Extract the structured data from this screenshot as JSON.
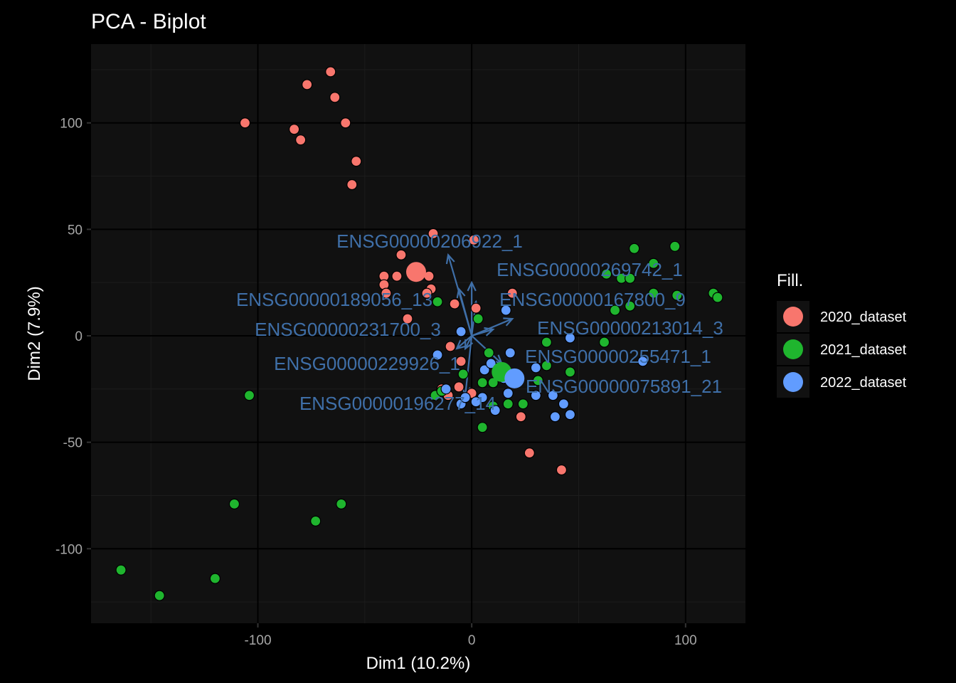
{
  "chart_data": {
    "type": "scatter",
    "title": "PCA - Biplot",
    "xlabel": "Dim1 (10.2%)",
    "ylabel": "Dim2 (7.9%)",
    "xlim": [
      -178,
      128
    ],
    "ylim": [
      -135,
      137
    ],
    "x_ticks": [
      -100,
      0,
      100
    ],
    "y_ticks": [
      100,
      50,
      0,
      -50,
      -100
    ],
    "x_tick_labels": [
      "-100",
      "0",
      "100"
    ],
    "y_tick_labels": [
      "100",
      "50",
      "0",
      "-50",
      "-100"
    ],
    "grid": true,
    "legend": {
      "title": "Fill.",
      "position": "right"
    },
    "series": [
      {
        "name": "2020_dataset",
        "color": "#f8766d",
        "centroid": [
          -26,
          30
        ],
        "points": [
          [
            -66,
            124
          ],
          [
            -77,
            118
          ],
          [
            -64,
            112
          ],
          [
            -106,
            100
          ],
          [
            -59,
            100
          ],
          [
            -83,
            97
          ],
          [
            -80,
            92
          ],
          [
            -54,
            82
          ],
          [
            -56,
            71
          ],
          [
            -18,
            48
          ],
          [
            1,
            45
          ],
          [
            -33,
            38
          ],
          [
            -35,
            28
          ],
          [
            -41,
            28
          ],
          [
            -20,
            28
          ],
          [
            -41,
            24
          ],
          [
            -19,
            22
          ],
          [
            -21,
            20
          ],
          [
            -40,
            20
          ],
          [
            -8,
            15
          ],
          [
            -30,
            8
          ],
          [
            2,
            13
          ],
          [
            19,
            20
          ],
          [
            -10,
            -5
          ],
          [
            -5,
            -12
          ],
          [
            -14,
            -25
          ],
          [
            -6,
            -24
          ],
          [
            -11,
            -28
          ],
          [
            0,
            -27
          ],
          [
            23,
            -38
          ],
          [
            27,
            -55
          ],
          [
            42,
            -63
          ]
        ]
      },
      {
        "name": "2021_dataset",
        "color": "#1fb52e",
        "centroid": [
          14,
          -17
        ],
        "points": [
          [
            76,
            41
          ],
          [
            95,
            42
          ],
          [
            85,
            34
          ],
          [
            63,
            29
          ],
          [
            70,
            27
          ],
          [
            74,
            27
          ],
          [
            96,
            19
          ],
          [
            85,
            20
          ],
          [
            113,
            20
          ],
          [
            115,
            18
          ],
          [
            67,
            12
          ],
          [
            74,
            14
          ],
          [
            -16,
            16
          ],
          [
            3,
            8
          ],
          [
            35,
            -3
          ],
          [
            62,
            -3
          ],
          [
            8,
            -8
          ],
          [
            -4,
            -18
          ],
          [
            5,
            -22
          ],
          [
            35,
            -14
          ],
          [
            46,
            -17
          ],
          [
            10,
            -22
          ],
          [
            31,
            -21
          ],
          [
            -104,
            -28
          ],
          [
            -17,
            -28
          ],
          [
            -14,
            -26
          ],
          [
            10,
            -33
          ],
          [
            17,
            -32
          ],
          [
            24,
            -32
          ],
          [
            5,
            -43
          ],
          [
            -111,
            -79
          ],
          [
            -61,
            -79
          ],
          [
            -73,
            -87
          ],
          [
            -164,
            -110
          ],
          [
            -120,
            -114
          ],
          [
            -146,
            -122
          ]
        ]
      },
      {
        "name": "2022_dataset",
        "color": "#619cff",
        "centroid": [
          20,
          -20
        ],
        "points": [
          [
            16,
            12
          ],
          [
            -5,
            2
          ],
          [
            46,
            -1
          ],
          [
            -16,
            -9
          ],
          [
            6,
            -16
          ],
          [
            18,
            -8
          ],
          [
            9,
            -13
          ],
          [
            80,
            -12
          ],
          [
            30,
            -15
          ],
          [
            -12,
            -25
          ],
          [
            15,
            -20
          ],
          [
            17,
            -27
          ],
          [
            -5,
            -32
          ],
          [
            -3,
            -29
          ],
          [
            5,
            -29
          ],
          [
            2,
            -31
          ],
          [
            11,
            -35
          ],
          [
            30,
            -28
          ],
          [
            38,
            -28
          ],
          [
            43,
            -32
          ],
          [
            39,
            -38
          ],
          [
            46,
            -37
          ]
        ]
      }
    ],
    "variables": [
      {
        "label": "ENSG00000206922_1",
        "end": [
          -11,
          38
        ]
      },
      {
        "label": "ENSG00000269742_1",
        "end": [
          0,
          25
        ]
      },
      {
        "label": "ENSG00000189056_13",
        "end": [
          -6,
          22
        ]
      },
      {
        "label": "ENSG00000167800_9",
        "end": [
          2,
          16
        ]
      },
      {
        "label": "ENSG00000231700_3",
        "end": [
          -7,
          -6
        ]
      },
      {
        "label": "ENSG00000213014_3",
        "end": [
          19,
          8
        ]
      },
      {
        "label": "ENSG00000255471_1",
        "end": [
          10,
          3
        ]
      },
      {
        "label": "ENSG00000229926_1",
        "end": [
          -3,
          -6
        ]
      },
      {
        "label": "ENSG00000075891_21",
        "end": [
          14,
          -13
        ]
      },
      {
        "label": "ENSG00000196277_14",
        "end": [
          -3,
          -28
        ]
      }
    ]
  }
}
